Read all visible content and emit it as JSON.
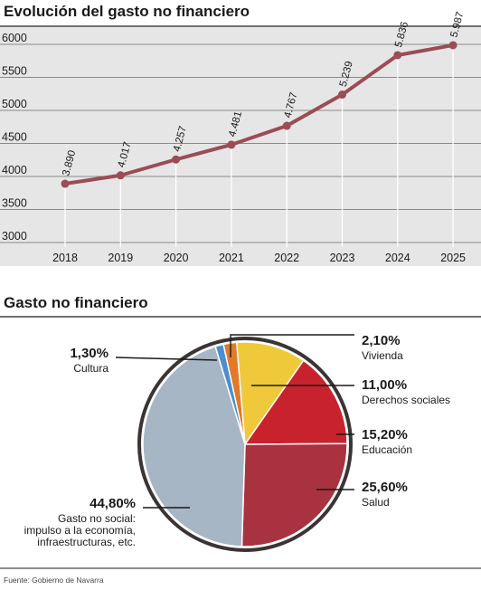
{
  "source": "Fuente: Gobierno de Navarra",
  "chart_data": [
    {
      "type": "line",
      "title": "Evolución del gasto no financiero",
      "xlabel": "",
      "ylabel": "",
      "categories": [
        "2018",
        "2019",
        "2020",
        "2021",
        "2022",
        "2023",
        "2024",
        "2025"
      ],
      "values": [
        3890,
        4017,
        4257,
        4481,
        4767,
        5239,
        5836,
        5987
      ],
      "data_labels": [
        "3.890",
        "4.017",
        "4.257",
        "4.481",
        "4.767",
        "5.239",
        "5.836",
        "5.987"
      ],
      "y_ticks": [
        3000,
        3500,
        4000,
        4500,
        5000,
        5500,
        6000
      ],
      "ylim": [
        3000,
        6000
      ],
      "grid": "horizontal",
      "colors": {
        "line": "#9b4c55",
        "grid": "#8a8a8a",
        "drop": "#ffffff"
      }
    },
    {
      "type": "pie",
      "title": "Gasto no financiero",
      "slices": [
        {
          "label": "Vivienda",
          "pct_label": "2,10%",
          "value": 2.1,
          "color": "#e07a2a"
        },
        {
          "label": "Derechos sociales",
          "pct_label": "11,00%",
          "value": 11.0,
          "color": "#efc93a"
        },
        {
          "label": "Educación",
          "pct_label": "15,20%",
          "value": 15.2,
          "color": "#c8232c"
        },
        {
          "label": "Salud",
          "pct_label": "25,60%",
          "value": 25.6,
          "color": "#a8323f"
        },
        {
          "label": "Gasto no social:\nimpulso a la economía,\ninfraestructuras, etc.",
          "pct_label": "44,80%",
          "value": 44.8,
          "color": "#a7b6c4"
        },
        {
          "label": "Cultura",
          "pct_label": "1,30%",
          "value": 1.3,
          "color": "#4a8fd0"
        }
      ]
    }
  ]
}
